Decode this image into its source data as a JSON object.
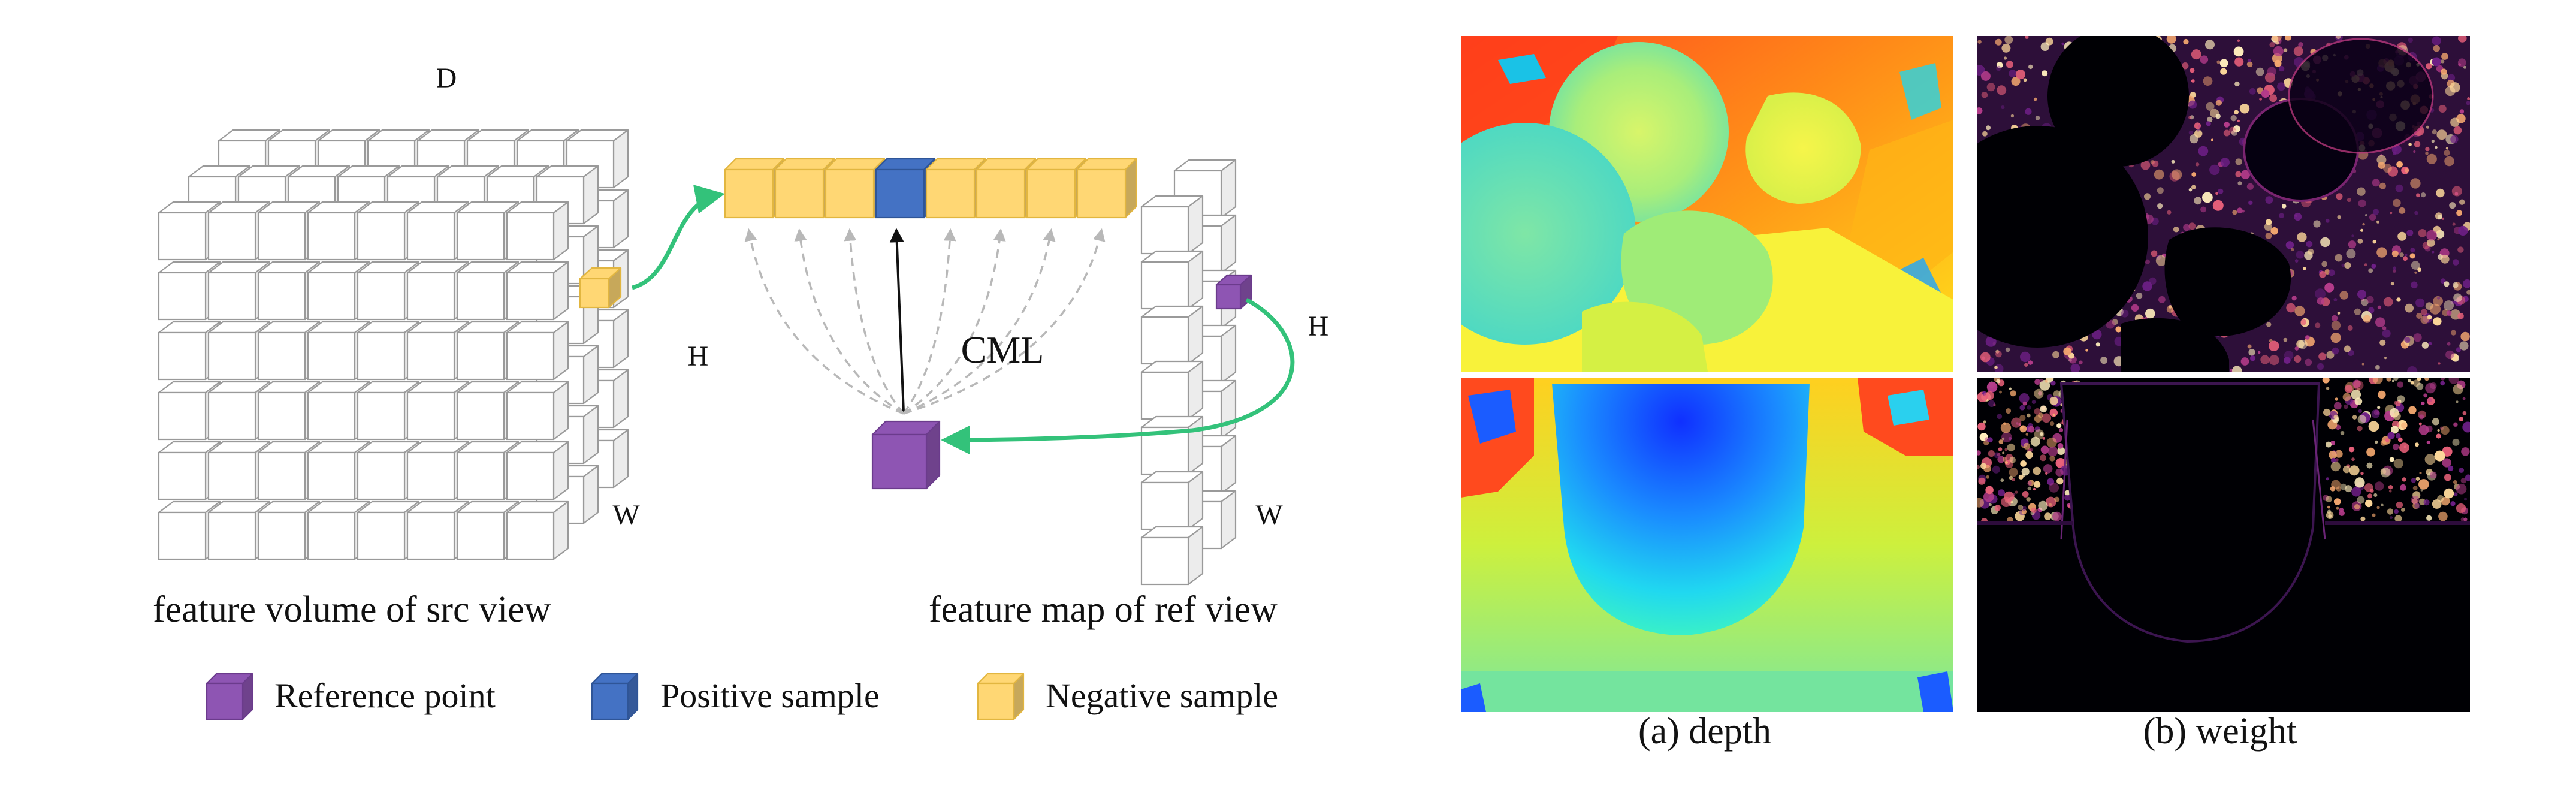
{
  "diagram": {
    "labels": {
      "d": "D",
      "h_left": "H",
      "w_left": "W",
      "h_right": "H",
      "w_right": "W",
      "cml": "CML",
      "src_caption": "feature volume of src view",
      "ref_caption": "feature map of ref view"
    },
    "legend": [
      {
        "label": "Reference point",
        "color": "#8e55b3"
      },
      {
        "label": "Positive sample",
        "color": "#4472c4"
      },
      {
        "label": "Negative sample",
        "color": "#ffd774"
      }
    ],
    "colors": {
      "cube_face": "#ffffff",
      "cube_edge": "#9a9a9a",
      "arrow_green": "#33c27a",
      "dashed_arrow": "#b8b8b8",
      "solid_arrow": "#111111"
    }
  },
  "panels": {
    "depth_caption": "(a) depth",
    "weight_caption": "(b) weight"
  }
}
